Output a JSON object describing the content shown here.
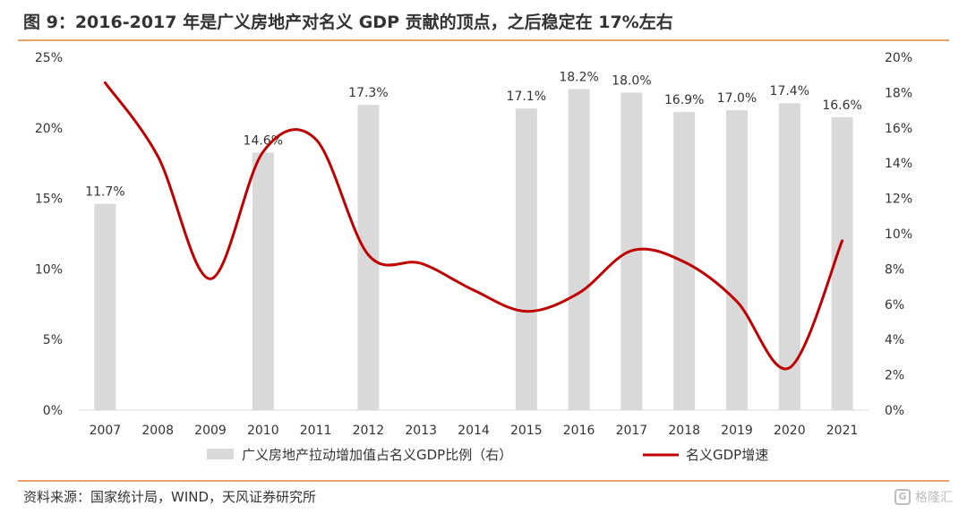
{
  "title": "图 9：2016-2017 年是广义房地产对名义 GDP 贡献的顶点，之后稳定在 17%左右",
  "source": "资料来源：国家统计局，WIND，天风证券研究所",
  "watermark": "格隆汇",
  "colors": {
    "bar": "#d9d9d9",
    "line": "#c00000",
    "rule": "#e8a268",
    "axis_text": "#333333"
  },
  "chart_data": {
    "type": "bar",
    "categories": [
      "2007",
      "2008",
      "2009",
      "2010",
      "2011",
      "2012",
      "2013",
      "2014",
      "2015",
      "2016",
      "2017",
      "2018",
      "2019",
      "2020",
      "2021"
    ],
    "series": [
      {
        "name": "广义房地产拉动增加值占名义GDP比例（右）",
        "type": "bar",
        "axis": "right",
        "values": [
          11.7,
          null,
          null,
          14.6,
          null,
          17.3,
          null,
          null,
          17.1,
          18.2,
          18.0,
          16.9,
          17.0,
          17.4,
          16.6
        ],
        "labels": [
          "11.7%",
          "",
          "",
          "14.6%",
          "",
          "17.3%",
          "",
          "",
          "17.1%",
          "18.2%",
          "18.0%",
          "16.9%",
          "17.0%",
          "17.4%",
          "16.6%"
        ]
      },
      {
        "name": "名义GDP增速",
        "type": "line",
        "axis": "left",
        "values": [
          23.2,
          18.0,
          9.3,
          18.3,
          19.2,
          11.0,
          10.4,
          8.5,
          7.0,
          8.3,
          11.3,
          10.5,
          7.7,
          3.0,
          12.0
        ]
      }
    ],
    "left_axis": {
      "ylim": [
        0,
        25
      ],
      "ticks": [
        "0%",
        "5%",
        "10%",
        "15%",
        "20%",
        "25%"
      ]
    },
    "right_axis": {
      "ylim": [
        0,
        20
      ],
      "ticks": [
        "0%",
        "2%",
        "4%",
        "6%",
        "8%",
        "10%",
        "12%",
        "14%",
        "16%",
        "18%",
        "20%"
      ]
    },
    "legend": {
      "position": "bottom",
      "items": [
        "广义房地产拉动增加值占名义GDP比例（右）",
        "名义GDP增速"
      ]
    },
    "grid": false
  }
}
